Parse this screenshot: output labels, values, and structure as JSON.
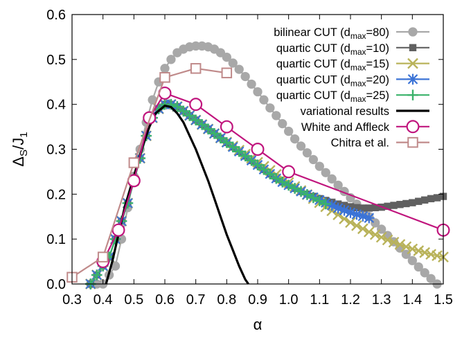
{
  "chart_data": {
    "type": "line",
    "xlabel": "α",
    "ylabel": {
      "main": "Δ",
      "sub1": "S",
      "mid": "/J",
      "sub2": "1"
    },
    "xlim": [
      0.3,
      1.5
    ],
    "ylim": [
      0,
      0.6
    ],
    "x_ticks": [
      "0.3",
      "0.4",
      "0.5",
      "0.6",
      "0.7",
      "0.8",
      "0.9",
      "1.0",
      "1.1",
      "1.2",
      "1.3",
      "1.4",
      "1.5"
    ],
    "y_ticks": [
      "0.0",
      "0.1",
      "0.2",
      "0.3",
      "0.4",
      "0.5",
      "0.6"
    ],
    "grid": false,
    "legend_position": "top-right",
    "series": [
      {
        "name": "bilinear CUT (d",
        "name_sub": "max",
        "name_tail": "=80)",
        "color": "#a8a8a8",
        "marker": "circle-filled",
        "x": [
          0.36,
          0.38,
          0.4,
          0.42,
          0.44,
          0.46,
          0.48,
          0.5,
          0.52,
          0.54,
          0.56,
          0.58,
          0.6,
          0.62,
          0.64,
          0.66,
          0.68,
          0.7,
          0.72,
          0.74,
          0.76,
          0.78,
          0.8,
          0.82,
          0.84,
          0.86,
          0.88,
          0.9,
          0.92,
          0.94,
          0.96,
          0.98,
          1.0,
          1.02,
          1.04,
          1.06,
          1.08,
          1.1,
          1.12,
          1.14,
          1.16,
          1.18,
          1.2,
          1.22,
          1.24,
          1.26,
          1.28,
          1.3,
          1.32,
          1.34,
          1.36,
          1.38,
          1.4,
          1.42,
          1.44,
          1.46,
          1.48
        ],
        "y": [
          0.0,
          0.0,
          0.0,
          0.02,
          0.04,
          0.1,
          0.17,
          0.24,
          0.3,
          0.36,
          0.41,
          0.45,
          0.48,
          0.5,
          0.515,
          0.523,
          0.528,
          0.53,
          0.53,
          0.528,
          0.523,
          0.515,
          0.505,
          0.492,
          0.478,
          0.462,
          0.445,
          0.428,
          0.41,
          0.392,
          0.375,
          0.357,
          0.34,
          0.323,
          0.307,
          0.292,
          0.277,
          0.262,
          0.248,
          0.234,
          0.22,
          0.206,
          0.192,
          0.178,
          0.164,
          0.15,
          0.136,
          0.122,
          0.108,
          0.094,
          0.08,
          0.066,
          0.052,
          0.038,
          0.025,
          0.012,
          0.0
        ]
      },
      {
        "name": "quartic CUT (d",
        "name_sub": "max",
        "name_tail": "=10)",
        "color": "#606060",
        "marker": "square-filled",
        "x": [
          0.36,
          0.38,
          0.4,
          0.42,
          0.44,
          0.46,
          0.48,
          0.5,
          0.52,
          0.54,
          0.56,
          0.58,
          0.6,
          0.62,
          0.64,
          0.66,
          0.68,
          0.7,
          0.72,
          0.74,
          0.76,
          0.78,
          0.8,
          0.82,
          0.84,
          0.86,
          0.88,
          0.9,
          0.92,
          0.94,
          0.96,
          0.98,
          1.0,
          1.02,
          1.04,
          1.06,
          1.08,
          1.1,
          1.12,
          1.14,
          1.16,
          1.18,
          1.2,
          1.22,
          1.24,
          1.26,
          1.28,
          1.3,
          1.32,
          1.34,
          1.36,
          1.38,
          1.4,
          1.42,
          1.44,
          1.46,
          1.48,
          1.5
        ],
        "y": [
          0.0,
          0.02,
          0.04,
          0.06,
          0.1,
          0.14,
          0.18,
          0.23,
          0.28,
          0.33,
          0.37,
          0.39,
          0.4,
          0.4,
          0.395,
          0.385,
          0.375,
          0.365,
          0.355,
          0.345,
          0.335,
          0.325,
          0.315,
          0.305,
          0.295,
          0.285,
          0.275,
          0.265,
          0.255,
          0.245,
          0.235,
          0.227,
          0.22,
          0.213,
          0.206,
          0.2,
          0.195,
          0.19,
          0.186,
          0.182,
          0.178,
          0.175,
          0.172,
          0.17,
          0.169,
          0.169,
          0.17,
          0.171,
          0.173,
          0.175,
          0.177,
          0.179,
          0.181,
          0.184,
          0.187,
          0.19,
          0.192,
          0.195
        ]
      },
      {
        "name": "quartic CUT (d",
        "name_sub": "max",
        "name_tail": "=15)",
        "color": "#b9b35a",
        "marker": "x",
        "x": [
          0.36,
          0.38,
          0.4,
          0.42,
          0.44,
          0.46,
          0.48,
          0.5,
          0.52,
          0.54,
          0.56,
          0.58,
          0.6,
          0.62,
          0.64,
          0.66,
          0.68,
          0.7,
          0.72,
          0.74,
          0.76,
          0.78,
          0.8,
          0.82,
          0.84,
          0.86,
          0.88,
          0.9,
          0.92,
          0.94,
          0.96,
          0.98,
          1.0,
          1.02,
          1.04,
          1.06,
          1.08,
          1.1,
          1.12,
          1.14,
          1.16,
          1.18,
          1.2,
          1.22,
          1.24,
          1.26,
          1.28,
          1.3,
          1.32,
          1.34,
          1.36,
          1.38,
          1.4,
          1.42,
          1.44,
          1.46,
          1.48,
          1.5
        ],
        "y": [
          0.0,
          0.02,
          0.04,
          0.06,
          0.1,
          0.14,
          0.18,
          0.23,
          0.28,
          0.33,
          0.37,
          0.39,
          0.4,
          0.4,
          0.395,
          0.385,
          0.375,
          0.365,
          0.355,
          0.345,
          0.335,
          0.325,
          0.316,
          0.307,
          0.298,
          0.289,
          0.28,
          0.271,
          0.262,
          0.253,
          0.244,
          0.235,
          0.226,
          0.217,
          0.208,
          0.199,
          0.19,
          0.181,
          0.172,
          0.163,
          0.154,
          0.145,
          0.137,
          0.13,
          0.123,
          0.116,
          0.11,
          0.104,
          0.098,
          0.093,
          0.088,
          0.083,
          0.078,
          0.074,
          0.07,
          0.066,
          0.063,
          0.06
        ]
      },
      {
        "name": "quartic CUT (d",
        "name_sub": "max",
        "name_tail": "=20)",
        "color": "#3b73d6",
        "marker": "asterisk",
        "x": [
          0.36,
          0.38,
          0.4,
          0.42,
          0.44,
          0.46,
          0.48,
          0.5,
          0.52,
          0.54,
          0.56,
          0.58,
          0.6,
          0.62,
          0.64,
          0.66,
          0.68,
          0.7,
          0.72,
          0.74,
          0.76,
          0.78,
          0.8,
          0.82,
          0.84,
          0.86,
          0.88,
          0.9,
          0.92,
          0.94,
          0.96,
          0.98,
          1.0,
          1.02,
          1.04,
          1.06,
          1.08,
          1.1,
          1.12,
          1.14,
          1.16,
          1.18,
          1.2,
          1.22,
          1.24,
          1.26
        ],
        "y": [
          0.0,
          0.02,
          0.04,
          0.06,
          0.1,
          0.14,
          0.18,
          0.23,
          0.28,
          0.33,
          0.37,
          0.39,
          0.4,
          0.4,
          0.395,
          0.385,
          0.375,
          0.365,
          0.355,
          0.345,
          0.335,
          0.325,
          0.315,
          0.305,
          0.295,
          0.285,
          0.275,
          0.265,
          0.255,
          0.245,
          0.235,
          0.227,
          0.22,
          0.213,
          0.206,
          0.199,
          0.193,
          0.187,
          0.181,
          0.175,
          0.169,
          0.164,
          0.159,
          0.155,
          0.151,
          0.147
        ]
      },
      {
        "name": "quartic CUT (d",
        "name_sub": "max",
        "name_tail": "=25)",
        "color": "#3ab26a",
        "marker": "plus",
        "x": [
          0.36,
          0.38,
          0.4,
          0.42,
          0.44,
          0.46,
          0.48,
          0.5,
          0.52,
          0.54,
          0.56,
          0.58,
          0.6,
          0.62,
          0.64,
          0.66,
          0.68,
          0.7,
          0.72,
          0.74,
          0.76,
          0.78,
          0.8,
          0.82,
          0.84,
          0.86,
          0.88,
          0.9,
          0.92,
          0.94,
          0.96,
          0.98,
          1.0,
          1.02,
          1.04,
          1.06,
          1.08,
          1.1,
          1.12
        ],
        "y": [
          0.0,
          0.02,
          0.04,
          0.06,
          0.1,
          0.14,
          0.18,
          0.23,
          0.28,
          0.33,
          0.37,
          0.39,
          0.4,
          0.4,
          0.395,
          0.385,
          0.375,
          0.365,
          0.355,
          0.345,
          0.335,
          0.325,
          0.315,
          0.305,
          0.295,
          0.285,
          0.275,
          0.265,
          0.255,
          0.245,
          0.235,
          0.227,
          0.22,
          0.213,
          0.206,
          0.199,
          0.192,
          0.185,
          0.178
        ]
      },
      {
        "name": "variational results",
        "color": "#000000",
        "marker": "none",
        "x": [
          0.41,
          0.43,
          0.45,
          0.47,
          0.5,
          0.53,
          0.55,
          0.57,
          0.6,
          0.62,
          0.64,
          0.66,
          0.68,
          0.7,
          0.72,
          0.74,
          0.76,
          0.78,
          0.8,
          0.82,
          0.84,
          0.86,
          0.87
        ],
        "y": [
          0.0,
          0.05,
          0.11,
          0.17,
          0.24,
          0.31,
          0.35,
          0.38,
          0.397,
          0.394,
          0.38,
          0.36,
          0.33,
          0.3,
          0.265,
          0.23,
          0.19,
          0.15,
          0.11,
          0.075,
          0.04,
          0.01,
          0.0
        ]
      },
      {
        "name": "White and Affleck",
        "color": "#c0157d",
        "marker": "circle-open",
        "x": [
          0.4,
          0.45,
          0.5,
          0.55,
          0.6,
          0.7,
          0.8,
          0.9,
          1.0,
          1.5
        ],
        "y": [
          0.05,
          0.12,
          0.23,
          0.37,
          0.425,
          0.4,
          0.35,
          0.3,
          0.25,
          0.12
        ]
      },
      {
        "name": "Chitra et al.",
        "color": "#c08a8a",
        "marker": "square-open",
        "x": [
          0.3,
          0.4,
          0.5,
          0.6,
          0.7,
          0.8
        ],
        "y": [
          0.015,
          0.06,
          0.27,
          0.46,
          0.48,
          0.47
        ]
      }
    ]
  }
}
